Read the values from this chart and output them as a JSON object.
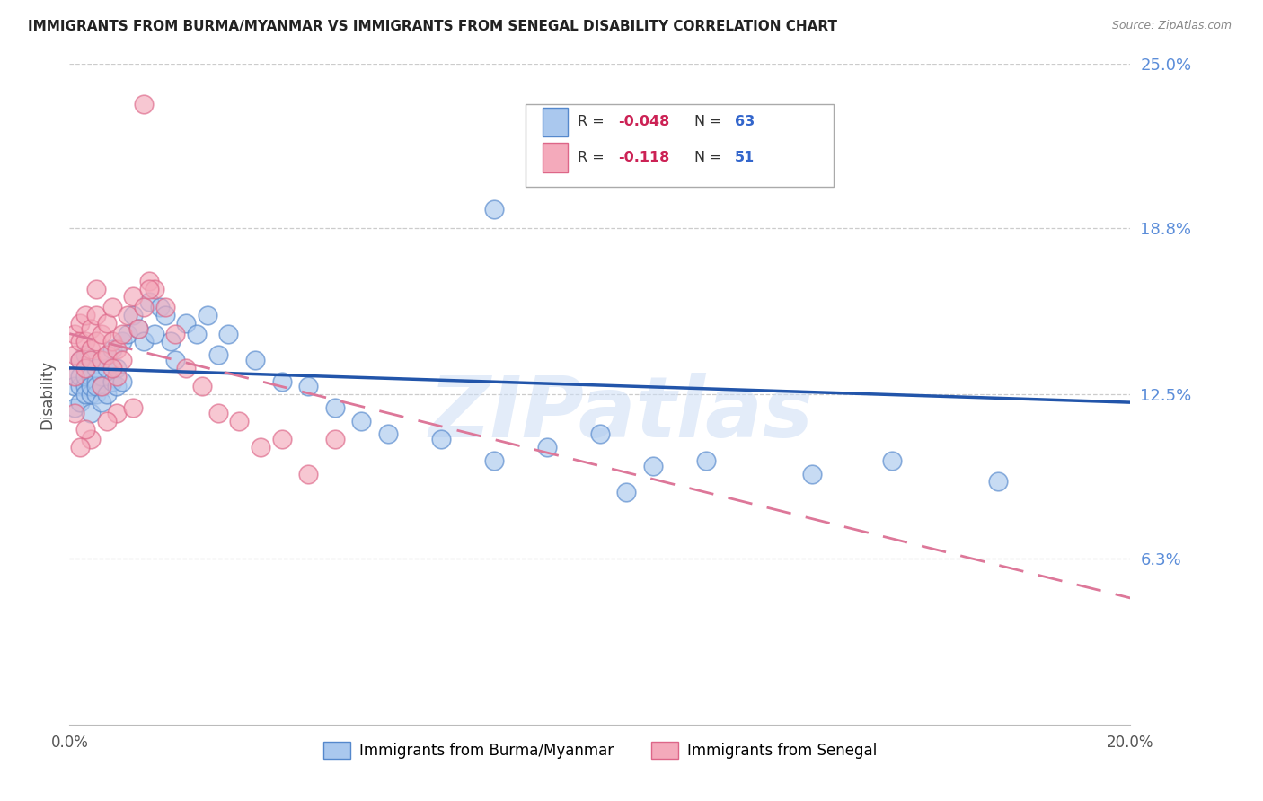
{
  "title": "IMMIGRANTS FROM BURMA/MYANMAR VS IMMIGRANTS FROM SENEGAL DISABILITY CORRELATION CHART",
  "source": "Source: ZipAtlas.com",
  "ylabel": "Disability",
  "watermark": "ZIPatlas",
  "xlim": [
    0.0,
    0.2
  ],
  "ylim": [
    0.0,
    0.25
  ],
  "ytick_vals": [
    0.063,
    0.125,
    0.188,
    0.25
  ],
  "ytick_labels": [
    "6.3%",
    "12.5%",
    "18.8%",
    "25.0%"
  ],
  "xtick_vals": [
    0.0,
    0.04,
    0.08,
    0.12,
    0.16,
    0.2
  ],
  "xtick_labels": [
    "0.0%",
    "",
    "",
    "",
    "",
    "20.0%"
  ],
  "color_burma_fill": "#aac8ee",
  "color_burma_edge": "#5588cc",
  "color_senegal_fill": "#f4aabb",
  "color_senegal_edge": "#dd6688",
  "color_burma_line": "#2255aa",
  "color_senegal_line": "#dd7799",
  "background_color": "#ffffff",
  "axis_tick_color": "#5b8dd9",
  "burma_x": [
    0.001,
    0.001,
    0.001,
    0.002,
    0.002,
    0.002,
    0.002,
    0.003,
    0.003,
    0.003,
    0.003,
    0.004,
    0.004,
    0.004,
    0.004,
    0.005,
    0.005,
    0.005,
    0.005,
    0.006,
    0.006,
    0.006,
    0.007,
    0.007,
    0.007,
    0.008,
    0.008,
    0.009,
    0.009,
    0.01,
    0.01,
    0.011,
    0.012,
    0.013,
    0.014,
    0.015,
    0.016,
    0.017,
    0.018,
    0.019,
    0.02,
    0.022,
    0.024,
    0.026,
    0.028,
    0.03,
    0.035,
    0.04,
    0.045,
    0.05,
    0.055,
    0.06,
    0.07,
    0.08,
    0.09,
    0.1,
    0.11,
    0.12,
    0.14,
    0.155,
    0.08,
    0.105,
    0.175
  ],
  "burma_y": [
    0.132,
    0.128,
    0.12,
    0.128,
    0.132,
    0.122,
    0.138,
    0.128,
    0.125,
    0.132,
    0.14,
    0.125,
    0.132,
    0.128,
    0.118,
    0.13,
    0.125,
    0.135,
    0.128,
    0.132,
    0.128,
    0.122,
    0.135,
    0.125,
    0.14,
    0.13,
    0.142,
    0.135,
    0.128,
    0.145,
    0.13,
    0.148,
    0.155,
    0.15,
    0.145,
    0.16,
    0.148,
    0.158,
    0.155,
    0.145,
    0.138,
    0.152,
    0.148,
    0.155,
    0.14,
    0.148,
    0.138,
    0.13,
    0.128,
    0.12,
    0.115,
    0.11,
    0.108,
    0.1,
    0.105,
    0.11,
    0.098,
    0.1,
    0.095,
    0.1,
    0.195,
    0.088,
    0.092
  ],
  "senegal_x": [
    0.001,
    0.001,
    0.001,
    0.002,
    0.002,
    0.002,
    0.003,
    0.003,
    0.003,
    0.004,
    0.004,
    0.004,
    0.005,
    0.005,
    0.005,
    0.006,
    0.006,
    0.007,
    0.007,
    0.008,
    0.008,
    0.009,
    0.009,
    0.01,
    0.01,
    0.011,
    0.012,
    0.013,
    0.014,
    0.015,
    0.016,
    0.018,
    0.02,
    0.022,
    0.025,
    0.028,
    0.032,
    0.036,
    0.04,
    0.045,
    0.015,
    0.008,
    0.006,
    0.009,
    0.012,
    0.007,
    0.004,
    0.003,
    0.002,
    0.001,
    0.05
  ],
  "senegal_y": [
    0.148,
    0.14,
    0.132,
    0.145,
    0.138,
    0.152,
    0.135,
    0.145,
    0.155,
    0.142,
    0.15,
    0.138,
    0.145,
    0.155,
    0.165,
    0.138,
    0.148,
    0.14,
    0.152,
    0.145,
    0.158,
    0.142,
    0.132,
    0.148,
    0.138,
    0.155,
    0.162,
    0.15,
    0.158,
    0.168,
    0.165,
    0.158,
    0.148,
    0.135,
    0.128,
    0.118,
    0.115,
    0.105,
    0.108,
    0.095,
    0.165,
    0.135,
    0.128,
    0.118,
    0.12,
    0.115,
    0.108,
    0.112,
    0.105,
    0.118,
    0.108
  ],
  "burma_line_y0": 0.135,
  "burma_line_y1": 0.122,
  "senegal_line_y0": 0.148,
  "senegal_line_y1": 0.048
}
